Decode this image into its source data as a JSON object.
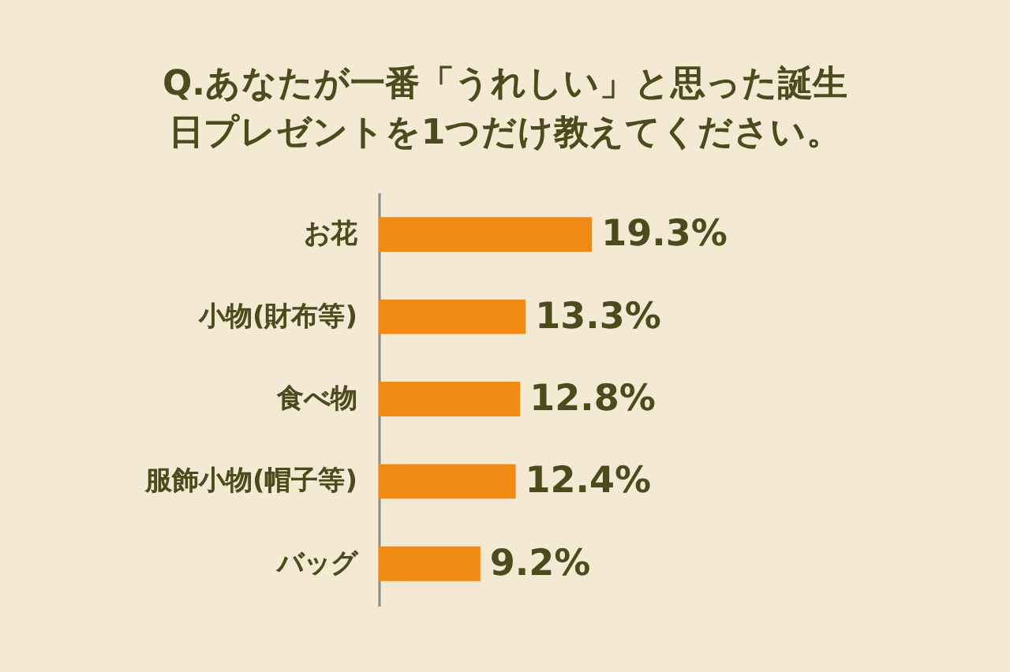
{
  "chart_data": {
    "type": "bar",
    "orientation": "horizontal",
    "title": "Q.あなたが一番「うれしい」と思った誕生日プレゼントを1つだけ教えてください。",
    "categories": [
      "お花",
      "小物(財布等)",
      "食べ物",
      "服飾小物(帽子等)",
      "バッグ"
    ],
    "values": [
      19.3,
      13.3,
      12.8,
      12.4,
      9.2
    ],
    "value_labels": [
      "19.3%",
      "13.3%",
      "12.8%",
      "12.4%",
      "9.2%"
    ],
    "color": "#f08a12"
  }
}
